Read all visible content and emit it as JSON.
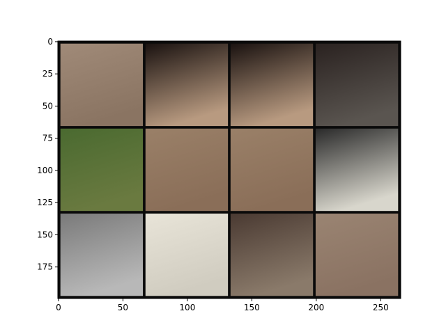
{
  "chart_data": {
    "type": "image",
    "xlim": [
      -0.5,
      265.5
    ],
    "ylim": [
      199.5,
      -0.5
    ],
    "xticks": [
      0,
      50,
      100,
      150,
      200,
      250
    ],
    "yticks": [
      0,
      25,
      50,
      75,
      100,
      125,
      150,
      175
    ]
  }
}
